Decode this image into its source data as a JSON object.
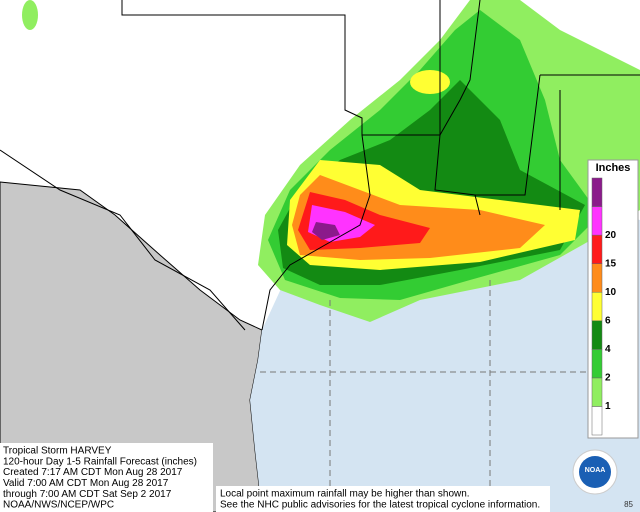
{
  "caption": {
    "lines": [
      "Tropical Storm HARVEY",
      "120-hour Day 1-5 Rainfall Forecast (inches)",
      "Created 7:17 AM CDT Mon Aug 28 2017",
      "Valid 7:00 AM CDT Mon Aug 28 2017",
      "through 7:00 AM CDT Sat Sep 2 2017",
      "NOAA/NWS/NCEP/WPC"
    ]
  },
  "legend": {
    "title": "Inches",
    "colors": [
      "#ffffff",
      "#90ee60",
      "#33cc33",
      "#138a13",
      "#ffff33",
      "#ff8c1a",
      "#ff1a1a",
      "#ff33ff",
      "#8b1a8b"
    ],
    "labels": [
      "1",
      "2",
      "4",
      "6",
      "10",
      "15",
      "20"
    ]
  },
  "note": {
    "lines": [
      "Local point maximum rainfall may be higher than shown.",
      "See the NHC public advisories for the latest tropical cyclone information."
    ]
  },
  "logo": {
    "text": "NOAA"
  },
  "corner_number": "85"
}
